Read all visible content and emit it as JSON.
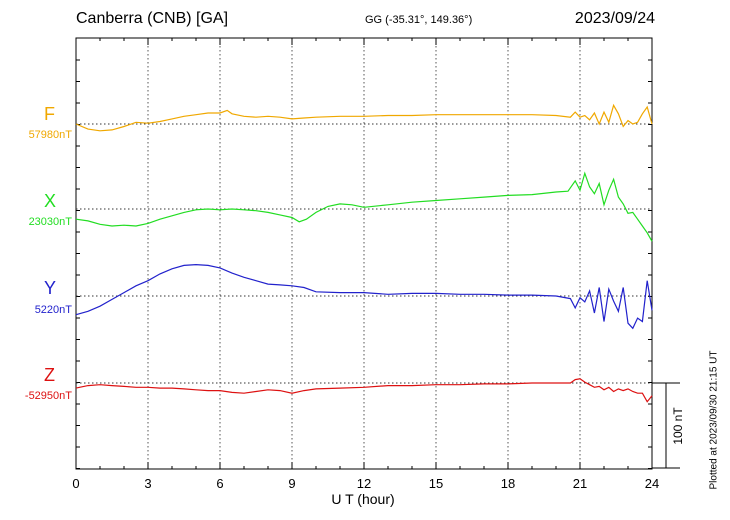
{
  "header": {
    "station": "Canberra (CNB)  [GA]",
    "coords": "GG (-35.31°, 149.36°)",
    "date": "2023/09/24"
  },
  "channels": [
    {
      "letter": "F",
      "base": "57980nT",
      "color": "#f0a800"
    },
    {
      "letter": "X",
      "base": "23030nT",
      "color": "#22dd22"
    },
    {
      "letter": "Y",
      "base": "5220nT",
      "color": "#2222cc"
    },
    {
      "letter": "Z",
      "base": "-52950nT",
      "color": "#dd1111"
    }
  ],
  "scale_bar_label": "100 nT",
  "plotted_note": "Plotted at 2023/09/30 21:15 UT",
  "chart_data": {
    "type": "line",
    "title": "Canberra (CNB)  [GA]",
    "xlabel": "U T (hour)",
    "ylabel": "",
    "xlim": [
      0,
      24
    ],
    "x_ticks": [
      0,
      3,
      6,
      9,
      12,
      15,
      18,
      21,
      24
    ],
    "units": "nT",
    "grid": true,
    "series": [
      {
        "name": "F",
        "baseline": "57980nT",
        "x": [
          0,
          0.5,
          1.0,
          1.5,
          2.0,
          2.5,
          3.0,
          3.5,
          4.0,
          4.5,
          5.0,
          5.5,
          6.0,
          6.3,
          6.5,
          7.0,
          7.5,
          8.0,
          8.5,
          9.0,
          9.5,
          10.0,
          11.0,
          12.0,
          13.0,
          14.0,
          15.0,
          16.0,
          17.0,
          18.0,
          19.0,
          20.0,
          20.6,
          20.8,
          21.0,
          21.2,
          21.4,
          21.6,
          21.8,
          22.0,
          22.2,
          22.4,
          22.6,
          22.8,
          23.0,
          23.2,
          23.4,
          23.6,
          23.8,
          24.0
        ],
        "values": [
          0,
          -6,
          -8,
          -7,
          -3,
          2,
          1,
          3,
          6,
          9,
          11,
          13,
          13,
          16,
          12,
          9,
          8,
          9,
          8,
          6,
          7,
          8,
          9,
          9,
          10,
          10,
          11,
          11,
          11,
          11,
          11,
          10,
          8,
          14,
          8,
          10,
          5,
          13,
          0,
          14,
          2,
          22,
          12,
          -3,
          4,
          0,
          2,
          12,
          20,
          0
        ]
      },
      {
        "name": "X",
        "baseline": "23030nT",
        "x": [
          0,
          0.5,
          1.0,
          1.5,
          2.0,
          2.5,
          3.0,
          3.5,
          4.0,
          4.5,
          5.0,
          5.5,
          6.0,
          6.5,
          7.0,
          7.5,
          8.0,
          8.5,
          9.0,
          9.3,
          9.6,
          10.0,
          10.5,
          11.0,
          11.5,
          12.0,
          13.0,
          14.0,
          15.0,
          16.0,
          17.0,
          18.0,
          19.0,
          20.0,
          20.5,
          20.8,
          21.0,
          21.2,
          21.4,
          21.6,
          21.8,
          22.0,
          22.2,
          22.4,
          22.6,
          22.8,
          23.0,
          23.2,
          23.4,
          23.6,
          23.8,
          24.0
        ],
        "values": [
          -12,
          -14,
          -18,
          -20,
          -19,
          -20,
          -17,
          -12,
          -8,
          -4,
          -1,
          0,
          -1,
          0,
          -1,
          -2,
          -4,
          -7,
          -10,
          -15,
          -12,
          -4,
          3,
          6,
          5,
          2,
          5,
          8,
          10,
          12,
          14,
          16,
          17,
          20,
          21,
          33,
          22,
          42,
          26,
          18,
          30,
          5,
          22,
          35,
          14,
          6,
          -5,
          -4,
          -12,
          -20,
          -28,
          -38
        ]
      },
      {
        "name": "Y",
        "baseline": "5220nT",
        "x": [
          0,
          0.5,
          1.0,
          1.5,
          2.0,
          2.5,
          3.0,
          3.5,
          4.0,
          4.5,
          5.0,
          5.5,
          6.0,
          6.5,
          7.0,
          7.5,
          8.0,
          8.5,
          9.0,
          9.5,
          10.0,
          11.0,
          12.0,
          13.0,
          14.0,
          15.0,
          16.0,
          17.0,
          18.0,
          19.0,
          20.0,
          20.6,
          20.8,
          21.0,
          21.2,
          21.4,
          21.6,
          21.8,
          22.0,
          22.2,
          22.4,
          22.6,
          22.8,
          23.0,
          23.2,
          23.4,
          23.6,
          23.8,
          24.0
        ],
        "values": [
          -22,
          -18,
          -12,
          -4,
          4,
          12,
          18,
          26,
          32,
          36,
          37,
          36,
          33,
          27,
          22,
          18,
          14,
          13,
          12,
          10,
          5,
          4,
          4,
          2,
          3,
          3,
          2,
          2,
          1,
          1,
          0,
          -3,
          -14,
          -2,
          -7,
          6,
          -20,
          10,
          -30,
          8,
          -6,
          -18,
          10,
          -32,
          -38,
          -26,
          -30,
          18,
          -17
        ]
      },
      {
        "name": "Z",
        "baseline": "-52950nT",
        "x": [
          0,
          0.5,
          1.0,
          1.5,
          2.0,
          2.5,
          3.0,
          3.5,
          4.0,
          4.5,
          5.0,
          5.5,
          6.0,
          6.5,
          7.0,
          7.5,
          8.0,
          8.5,
          9.0,
          9.5,
          10.0,
          11.0,
          12.0,
          13.0,
          14.0,
          15.0,
          16.0,
          17.0,
          18.0,
          19.0,
          20.0,
          20.6,
          20.8,
          21.0,
          21.2,
          21.4,
          21.6,
          21.8,
          22.0,
          22.2,
          22.4,
          22.6,
          22.8,
          23.0,
          23.2,
          23.4,
          23.6,
          23.8,
          24.0
        ],
        "values": [
          -6,
          -3,
          -2,
          -3,
          -4,
          -5,
          -5,
          -6,
          -6,
          -7,
          -8,
          -9,
          -9,
          -11,
          -12,
          -10,
          -8,
          -9,
          -12,
          -9,
          -7,
          -6,
          -5,
          -3,
          -3,
          -2,
          -2,
          -1,
          -1,
          0,
          0,
          0,
          4,
          5,
          1,
          -2,
          -5,
          -4,
          -8,
          -5,
          -10,
          -7,
          -9,
          -7,
          -10,
          -12,
          -12,
          -22,
          -15
        ]
      }
    ]
  }
}
